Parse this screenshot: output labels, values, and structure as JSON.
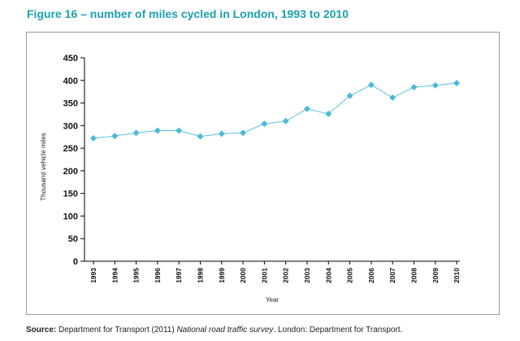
{
  "title": "Figure 16 – number of miles cycled in London, 1993 to 2010",
  "source": {
    "label": "Source:",
    "text_before": " Department for Transport (2011) ",
    "publication": "National road traffic survey",
    "text_after": ". London: Department for Transport."
  },
  "colors": {
    "title": "#1aa0b0",
    "series_line": "#5bc0de",
    "marker": "#4ab8d8",
    "axis": "#000000",
    "frame": "#9a9a9a"
  },
  "chart_data": {
    "type": "line",
    "title": "Figure 16 – number of miles cycled in London, 1993 to 2010",
    "xlabel": "Year",
    "ylabel": "Thousand vehicle miles",
    "ylim": [
      0,
      450
    ],
    "yticks": [
      0,
      50,
      100,
      150,
      200,
      250,
      300,
      350,
      400,
      450
    ],
    "grid": false,
    "legend": "none",
    "categories": [
      "1993",
      "1994",
      "1995",
      "1996",
      "1997",
      "1998",
      "1999",
      "2000",
      "2001",
      "2002",
      "2003",
      "2004",
      "2005",
      "2006",
      "2007",
      "2008",
      "2009",
      "2010"
    ],
    "series": [
      {
        "name": "Miles cycled",
        "marker": "diamond",
        "values": [
          272,
          277,
          284,
          289,
          289,
          276,
          282,
          284,
          304,
          310,
          337,
          326,
          366,
          390,
          362,
          385,
          389,
          394
        ]
      }
    ]
  }
}
